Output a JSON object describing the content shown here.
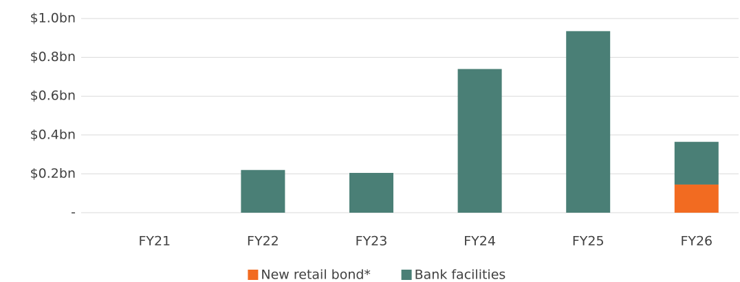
{
  "chart_data": {
    "type": "stacked_bar",
    "categories": [
      "FY21",
      "FY22",
      "FY23",
      "FY24",
      "FY25",
      "FY26"
    ],
    "series": [
      {
        "name": "New retail bond*",
        "color": "#f26b21",
        "values": [
          0,
          0,
          0,
          0,
          0,
          0.145
        ]
      },
      {
        "name": "Bank facilities",
        "color": "#4a7f76",
        "values": [
          0,
          0.22,
          0.205,
          0.74,
          0.935,
          0.22
        ]
      }
    ],
    "ylim": [
      0,
      1.0
    ],
    "yticks": [
      {
        "value": 0,
        "label": "-"
      },
      {
        "value": 0.2,
        "label": "$0.2bn"
      },
      {
        "value": 0.4,
        "label": "$0.4bn"
      },
      {
        "value": 0.6,
        "label": "$0.6bn"
      },
      {
        "value": 0.8,
        "label": "$0.8bn"
      },
      {
        "value": 1.0,
        "label": "$1.0bn"
      }
    ],
    "grid": true,
    "legend": "bottom"
  }
}
